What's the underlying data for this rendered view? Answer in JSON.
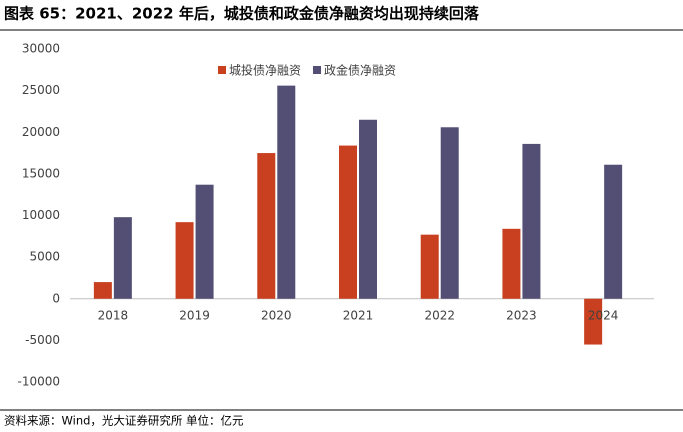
{
  "title": "图表 65：2021、2022 年后，城投债和政金债净融资均出现持续回落",
  "source": "资料来源：Wind，光大证券研究所 单位：亿元",
  "chart_data": {
    "type": "bar",
    "categories": [
      "2018",
      "2019",
      "2020",
      "2021",
      "2022",
      "2023",
      "2024"
    ],
    "series": [
      {
        "name": "城投债净融资",
        "color": "#c8401f",
        "values": [
          2000,
          9200,
          17500,
          18400,
          7700,
          8400,
          -5500
        ]
      },
      {
        "name": "政金债净融资",
        "color": "#534f74",
        "values": [
          9800,
          13700,
          25600,
          21500,
          20600,
          18600,
          16100
        ]
      }
    ],
    "ylim": [
      -10000,
      30000
    ],
    "yticks": [
      -10000,
      -5000,
      0,
      5000,
      10000,
      15000,
      20000,
      25000,
      30000
    ],
    "legend": "top"
  }
}
